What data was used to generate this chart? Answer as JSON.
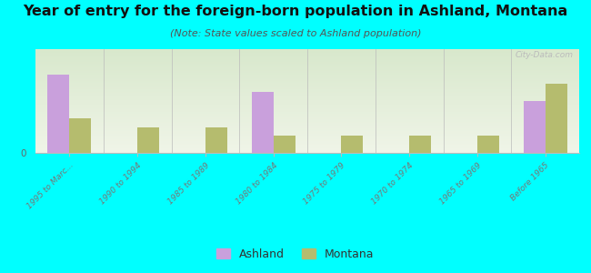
{
  "title": "Year of entry for the foreign-born population in Ashland, Montana",
  "subtitle": "(Note: State values scaled to Ashland population)",
  "categories": [
    "1995 to Marc...",
    "1990 to 1994",
    "1985 to 1989",
    "1980 to 1984",
    "1975 to 1979",
    "1970 to 1974",
    "1965 to 1969",
    "Before 1965"
  ],
  "ashland_values": [
    9,
    0,
    0,
    7,
    0,
    0,
    0,
    6
  ],
  "montana_values": [
    4,
    3,
    3,
    2,
    2,
    2,
    2,
    8
  ],
  "ashland_color": "#c9a0dc",
  "montana_color": "#b5bc6e",
  "background_color": "#00ffff",
  "grad_top": "#d8e8cc",
  "grad_bottom": "#f0f5e8",
  "bar_width": 0.32,
  "watermark": "City-Data.com",
  "ylim": [
    0,
    12
  ],
  "title_fontsize": 11.5,
  "subtitle_fontsize": 8,
  "legend_fontsize": 9
}
